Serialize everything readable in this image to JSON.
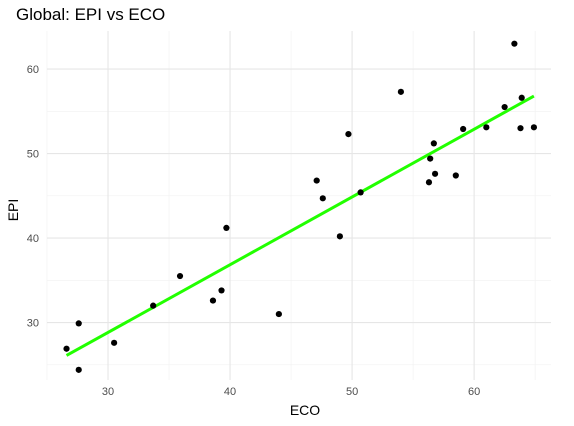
{
  "chart_data": {
    "type": "scatter",
    "title": "Global: EPI vs ECO",
    "xlabel": "ECO",
    "ylabel": "EPI",
    "xlim": [
      25.0,
      66.3
    ],
    "ylim": [
      23.2,
      64.5
    ],
    "x_ticks": [
      30,
      40,
      50,
      60
    ],
    "y_ticks": [
      30,
      40,
      50,
      60
    ],
    "x_minor_ticks": [
      25,
      35,
      45,
      55,
      65
    ],
    "y_minor_ticks": [
      25,
      35,
      45,
      55
    ],
    "grid": true,
    "point_color": "#000000",
    "fit_line_color": "#22ff00",
    "series": [
      {
        "points": [
          {
            "x": 26.6,
            "y": 26.9
          },
          {
            "x": 27.6,
            "y": 29.9
          },
          {
            "x": 27.6,
            "y": 24.4
          },
          {
            "x": 30.5,
            "y": 27.6
          },
          {
            "x": 33.7,
            "y": 32.0
          },
          {
            "x": 35.9,
            "y": 35.5
          },
          {
            "x": 38.6,
            "y": 32.6
          },
          {
            "x": 39.3,
            "y": 33.8
          },
          {
            "x": 39.7,
            "y": 41.2
          },
          {
            "x": 44.0,
            "y": 31.0
          },
          {
            "x": 47.1,
            "y": 46.8
          },
          {
            "x": 47.6,
            "y": 44.7
          },
          {
            "x": 49.0,
            "y": 40.2
          },
          {
            "x": 49.7,
            "y": 52.3
          },
          {
            "x": 50.7,
            "y": 45.4
          },
          {
            "x": 54.0,
            "y": 57.3
          },
          {
            "x": 56.3,
            "y": 46.6
          },
          {
            "x": 56.4,
            "y": 49.4
          },
          {
            "x": 56.7,
            "y": 51.2
          },
          {
            "x": 56.8,
            "y": 47.6
          },
          {
            "x": 58.5,
            "y": 47.4
          },
          {
            "x": 59.1,
            "y": 52.9
          },
          {
            "x": 61.0,
            "y": 53.1
          },
          {
            "x": 62.5,
            "y": 55.5
          },
          {
            "x": 63.3,
            "y": 63.0
          },
          {
            "x": 63.8,
            "y": 53.0
          },
          {
            "x": 63.9,
            "y": 56.6
          },
          {
            "x": 64.9,
            "y": 53.1
          }
        ]
      }
    ],
    "fit_line": {
      "x": [
        26.6,
        64.9
      ],
      "y": [
        26.1,
        56.8
      ]
    }
  }
}
